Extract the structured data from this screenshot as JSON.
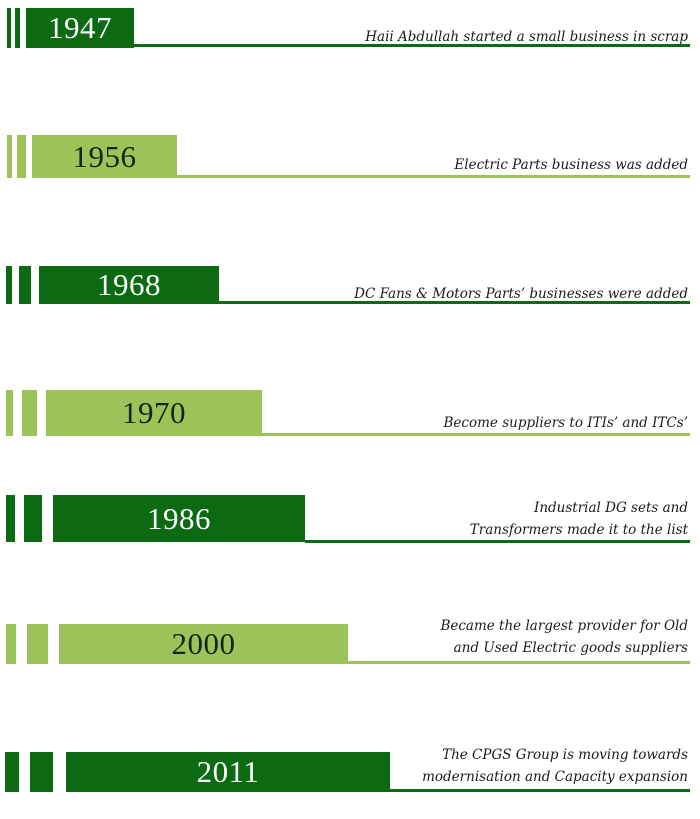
{
  "colors": {
    "dark": "#0b6a12",
    "light": "#9cc25a"
  },
  "milestones": [
    {
      "year": "1947",
      "tone": "dark",
      "lines": [
        "Haii Abdullah started a small business in scrap"
      ]
    },
    {
      "year": "1956",
      "tone": "light",
      "lines": [
        "Electric Parts business was added"
      ]
    },
    {
      "year": "1968",
      "tone": "dark",
      "lines": [
        "DC Fans & Motors Parts’ businesses were added"
      ]
    },
    {
      "year": "1970",
      "tone": "light",
      "lines": [
        "Become suppliers to ITIs’ and ITCs’"
      ]
    },
    {
      "year": "1986",
      "tone": "dark",
      "lines": [
        "Industrial DG sets and",
        "Transformers made it to the list"
      ]
    },
    {
      "year": "2000",
      "tone": "light",
      "lines": [
        "Became the largest provider for Old",
        "and Used Electric goods suppliers"
      ]
    },
    {
      "year": "2011",
      "tone": "dark",
      "lines": [
        "The CPGS Group is moving towards",
        "modernisation and Capacity expansion"
      ]
    }
  ]
}
